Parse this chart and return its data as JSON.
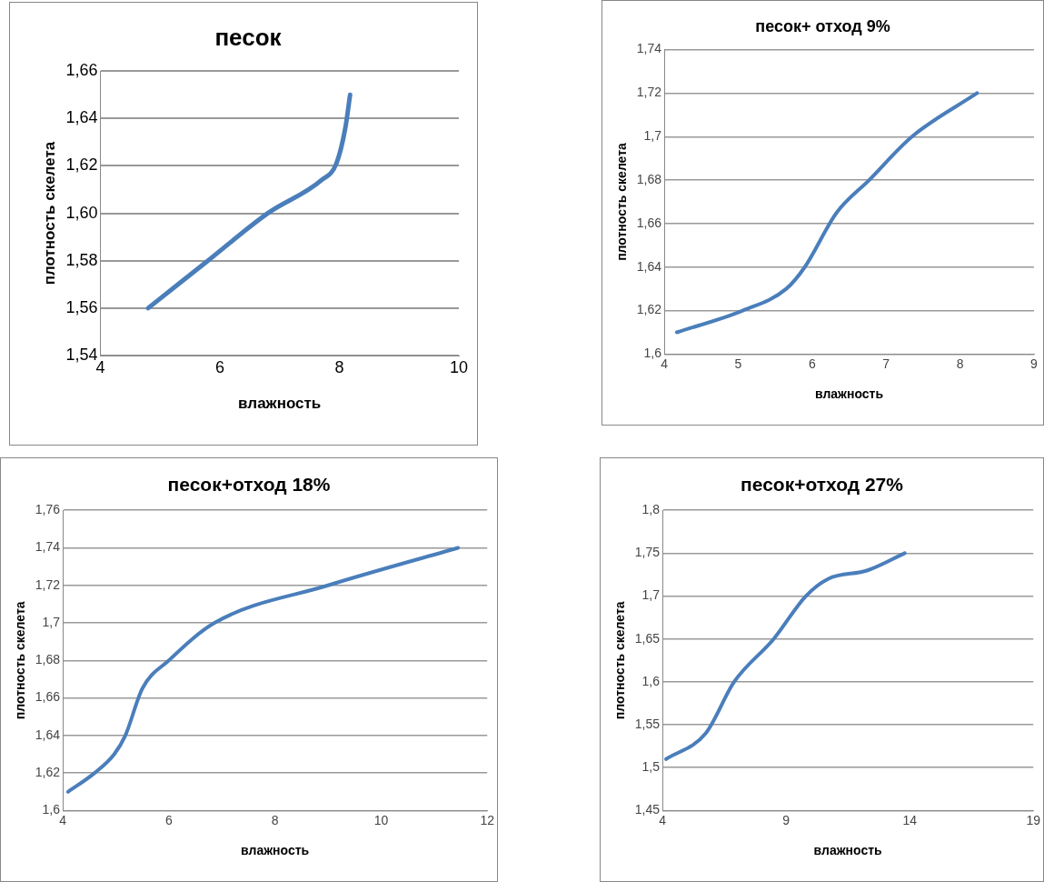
{
  "chart_data": [
    {
      "type": "line",
      "title": "песок",
      "xlabel": "влажность",
      "ylabel": "плотность скелета",
      "x": [
        4.8,
        5.8,
        6.8,
        7.7,
        7.95,
        8.1,
        8.18
      ],
      "series": [
        {
          "color": "#4a7ebb",
          "values": [
            1.56,
            1.58,
            1.6,
            1.614,
            1.621,
            1.636,
            1.65
          ]
        }
      ],
      "xlim": [
        4,
        10
      ],
      "xticks": [
        4,
        6,
        8,
        10
      ],
      "ylim": [
        1.54,
        1.66
      ],
      "yticks": [
        {
          "value": 1.54,
          "label": "1,54"
        },
        {
          "value": 1.56,
          "label": "1,56"
        },
        {
          "value": 1.58,
          "label": "1,58"
        },
        {
          "value": 1.6,
          "label": "1,60"
        },
        {
          "value": 1.62,
          "label": "1,62"
        },
        {
          "value": 1.64,
          "label": "1,64"
        },
        {
          "value": 1.66,
          "label": "1,66"
        }
      ],
      "grid": "y",
      "marker": "none"
    },
    {
      "type": "line",
      "title": "песок+ отход 9%",
      "xlabel": "влажность",
      "ylabel": "плотность скелета",
      "x": [
        4.17,
        5.06,
        5.65,
        5.9,
        6.33,
        6.77,
        7.35,
        8.23
      ],
      "series": [
        {
          "color": "#4a7ebb",
          "values": [
            1.61,
            1.62,
            1.63,
            1.64,
            1.665,
            1.68,
            1.7,
            1.72
          ]
        }
      ],
      "xlim": [
        4,
        9
      ],
      "xticks": [
        4,
        5,
        6,
        7,
        8,
        9
      ],
      "ylim": [
        1.6,
        1.74
      ],
      "yticks": [
        {
          "value": 1.6,
          "label": "1,6"
        },
        {
          "value": 1.62,
          "label": "1,62"
        },
        {
          "value": 1.64,
          "label": "1,64"
        },
        {
          "value": 1.66,
          "label": "1,66"
        },
        {
          "value": 1.68,
          "label": "1,68"
        },
        {
          "value": 1.7,
          "label": "1,7"
        },
        {
          "value": 1.72,
          "label": "1,72"
        },
        {
          "value": 1.74,
          "label": "1,74"
        }
      ],
      "grid": "y",
      "marker": "none"
    },
    {
      "type": "line",
      "title": "песок+отход 18%",
      "xlabel": "влажность",
      "ylabel": "плотность скелета",
      "x": [
        4.1,
        4.6,
        4.97,
        5.18,
        5.5,
        6.0,
        6.86,
        9.0,
        11.45
      ],
      "series": [
        {
          "color": "#4a7ebb",
          "values": [
            1.61,
            1.62,
            1.63,
            1.64,
            1.665,
            1.68,
            1.7,
            1.72,
            1.74
          ]
        }
      ],
      "xlim": [
        4,
        12
      ],
      "xticks": [
        4,
        6,
        8,
        10,
        12
      ],
      "ylim": [
        1.6,
        1.76
      ],
      "yticks": [
        {
          "value": 1.6,
          "label": "1,6"
        },
        {
          "value": 1.62,
          "label": "1,62"
        },
        {
          "value": 1.64,
          "label": "1,64"
        },
        {
          "value": 1.66,
          "label": "1,66"
        },
        {
          "value": 1.68,
          "label": "1,68"
        },
        {
          "value": 1.7,
          "label": "1,7"
        },
        {
          "value": 1.72,
          "label": "1,72"
        },
        {
          "value": 1.74,
          "label": "1,74"
        },
        {
          "value": 1.76,
          "label": "1,76"
        }
      ],
      "grid": "y",
      "marker": "none"
    },
    {
      "type": "line",
      "title": "песок+отход 27%",
      "xlabel": "влажность",
      "ylabel": "плотность скелета",
      "x": [
        4.15,
        5.75,
        6.9,
        8.5,
        9.8,
        10.7,
        12.3,
        13.8
      ],
      "series": [
        {
          "color": "#4a7ebb",
          "values": [
            1.51,
            1.54,
            1.6,
            1.65,
            1.7,
            1.72,
            1.73,
            1.75
          ]
        }
      ],
      "xlim": [
        4,
        19
      ],
      "xticks": [
        4,
        9,
        14,
        19
      ],
      "ylim": [
        1.45,
        1.8
      ],
      "yticks": [
        {
          "value": 1.45,
          "label": "1,45"
        },
        {
          "value": 1.5,
          "label": "1,5"
        },
        {
          "value": 1.55,
          "label": "1,55"
        },
        {
          "value": 1.6,
          "label": "1,6"
        },
        {
          "value": 1.65,
          "label": "1,65"
        },
        {
          "value": 1.7,
          "label": "1,7"
        },
        {
          "value": 1.75,
          "label": "1,75"
        },
        {
          "value": 1.8,
          "label": "1,8"
        }
      ],
      "grid": "y",
      "marker": "none"
    }
  ]
}
